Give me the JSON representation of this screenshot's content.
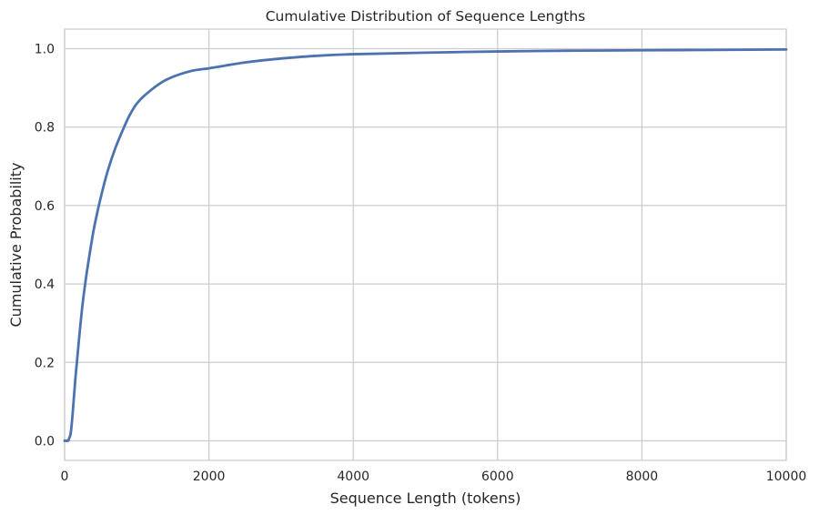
{
  "chart_data": {
    "type": "line",
    "title": "Cumulative Distribution of Sequence Lengths",
    "xlabel": "Sequence Length (tokens)",
    "ylabel": "Cumulative Probability",
    "xlim": [
      0,
      10000
    ],
    "ylim": [
      -0.05,
      1.05
    ],
    "xticks": [
      0,
      2000,
      4000,
      6000,
      8000,
      10000
    ],
    "yticks": [
      0.0,
      0.2,
      0.4,
      0.6,
      0.8,
      1.0
    ],
    "xtick_labels": [
      "0",
      "2000",
      "4000",
      "6000",
      "8000",
      "10000"
    ],
    "ytick_labels": [
      "0.0",
      "0.2",
      "0.4",
      "0.6",
      "0.8",
      "1.0"
    ],
    "grid": true,
    "style": {
      "line_color": "#4c72b0",
      "grid_color": "#cccccc",
      "text_color": "#262626"
    },
    "series": [
      {
        "x": [
          0,
          50,
          60,
          80,
          100,
          120,
          150,
          200,
          250,
          300,
          350,
          400,
          450,
          500,
          600,
          700,
          800,
          900,
          1000,
          1200,
          1400,
          1600,
          1800,
          2000,
          2500,
          3000,
          3500,
          4000,
          5000,
          6000,
          7000,
          8000,
          9000,
          10000
        ],
        "y": [
          0.0,
          0.0,
          0.005,
          0.015,
          0.045,
          0.09,
          0.16,
          0.26,
          0.35,
          0.42,
          0.48,
          0.535,
          0.58,
          0.62,
          0.69,
          0.745,
          0.79,
          0.83,
          0.86,
          0.895,
          0.92,
          0.935,
          0.945,
          0.95,
          0.965,
          0.975,
          0.982,
          0.986,
          0.99,
          0.993,
          0.995,
          0.996,
          0.997,
          0.998
        ]
      }
    ]
  }
}
